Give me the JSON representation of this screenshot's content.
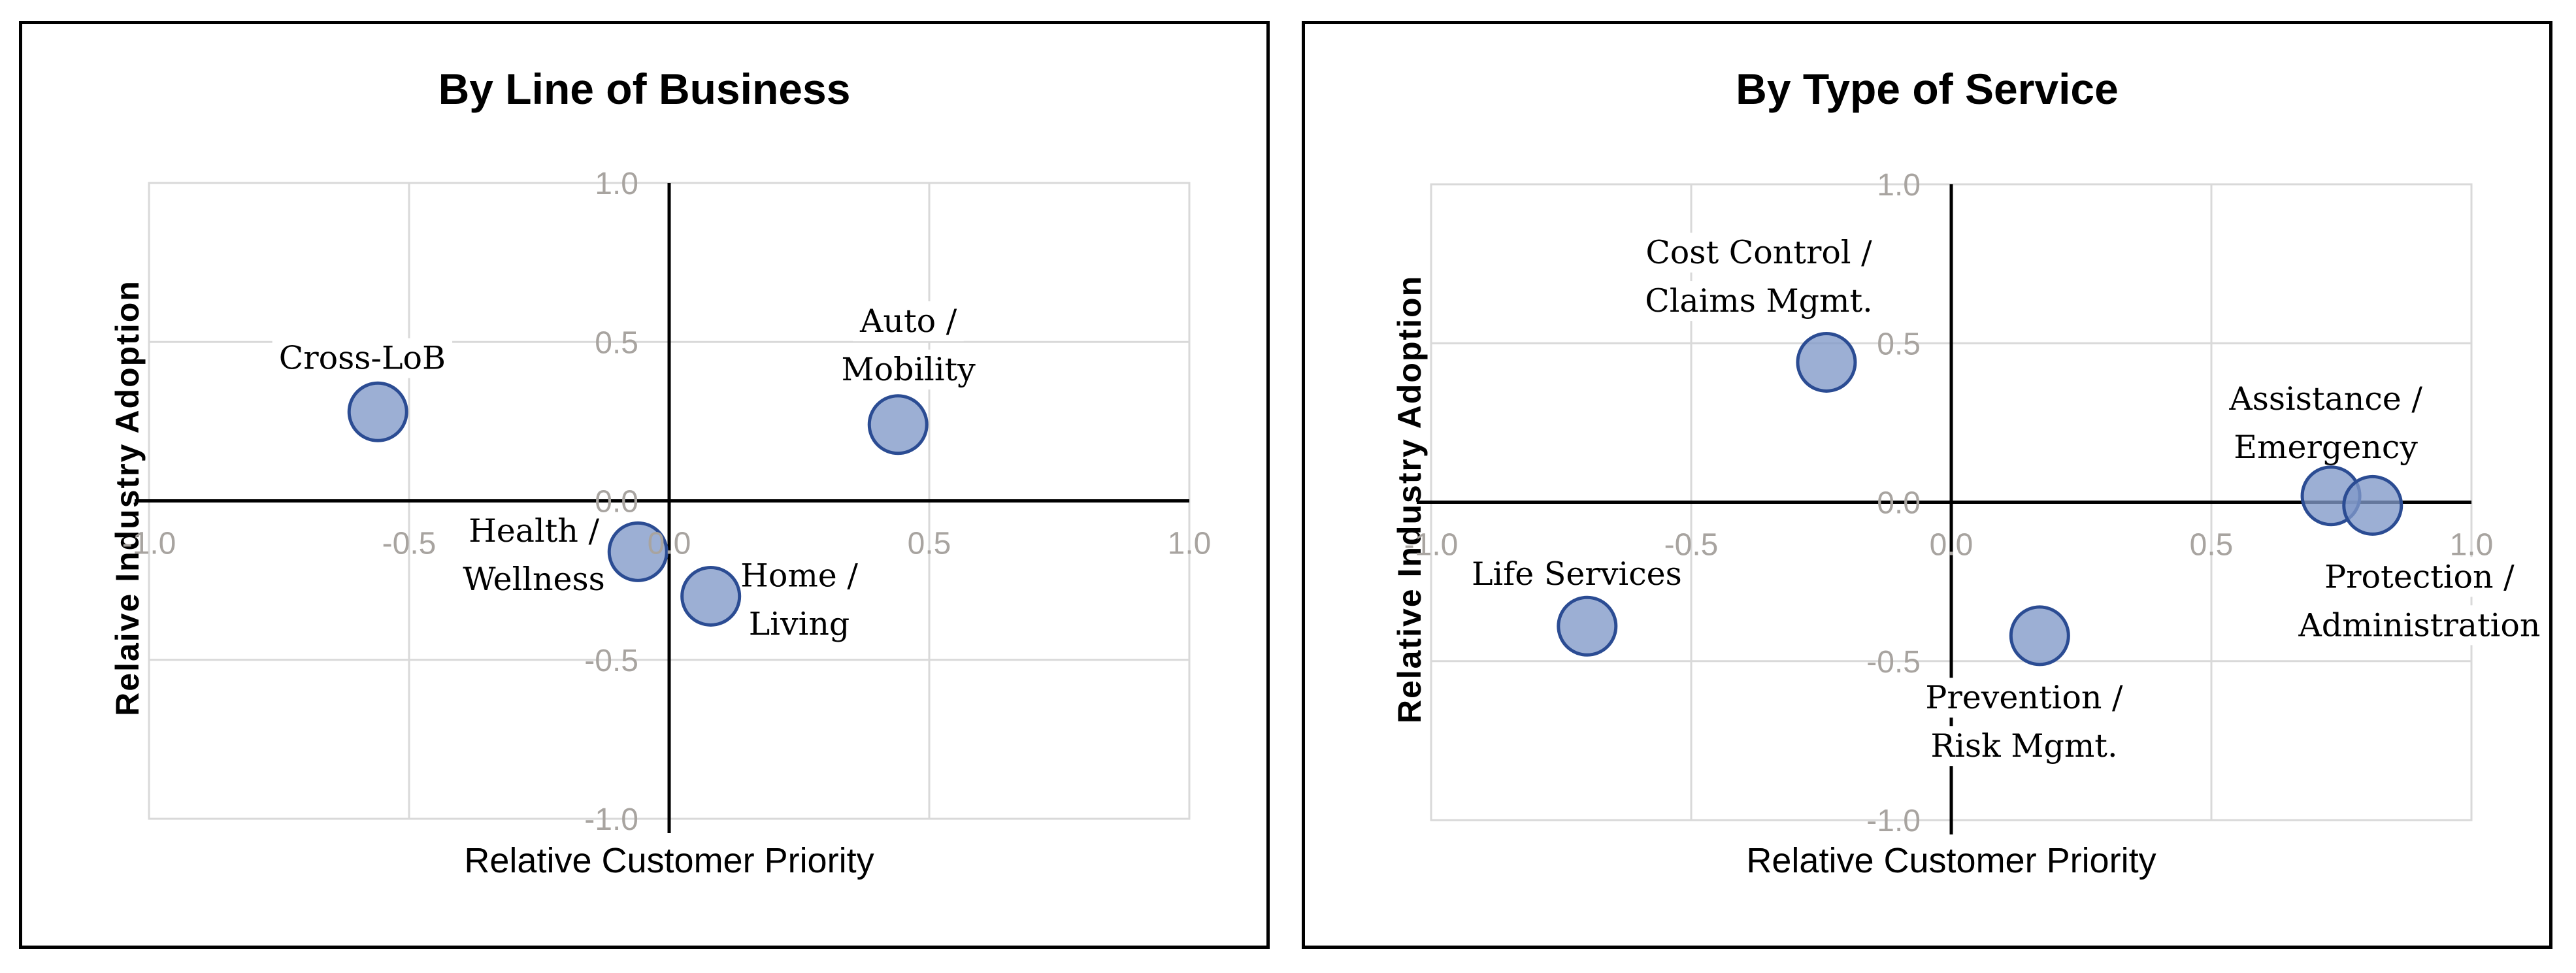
{
  "figure": {
    "background": "#ffffff",
    "panel_border_color": "#000000"
  },
  "colors": {
    "marker_fill": "#8098C8",
    "marker_fill_opacity": 0.78,
    "marker_stroke": "#2B4C93",
    "gridline": "#D9D9D9",
    "plot_border": "#D9D9D9",
    "axis_line": "#000000",
    "tick_label": "#A8A4A0",
    "data_label": "#000000",
    "label_background": "#FFFFFF"
  },
  "chart_data": [
    {
      "type": "scatter",
      "title": "By Line of Business",
      "xlabel": "Relative Customer Priority",
      "ylabel": "Relaive Industry Adoption",
      "xlim": [
        -1,
        1
      ],
      "ylim": [
        -1,
        1
      ],
      "grid": true,
      "legend": "none",
      "xticks": [
        "-1.0",
        "-0.5",
        "0.0",
        "0.5",
        "1.0"
      ],
      "yticks": [
        "1.0",
        "0.5",
        "0.0",
        "-0.5",
        "-1.0"
      ],
      "points": [
        {
          "name": "Cross-LoB",
          "x": -0.56,
          "y": 0.28,
          "label_lines": [
            "Cross-LoB"
          ],
          "label_x": -0.59,
          "label_y": 0.45
        },
        {
          "name": "Auto / Mobility",
          "x": 0.44,
          "y": 0.24,
          "label_lines": [
            "Auto /",
            "Mobility"
          ],
          "label_x": 0.46,
          "label_y": 0.49
        },
        {
          "name": "Health / Wellness",
          "x": -0.06,
          "y": -0.16,
          "label_lines": [
            "Health /",
            "Wellness"
          ],
          "label_x": -0.26,
          "label_y": -0.17
        },
        {
          "name": "Home / Living",
          "x": 0.08,
          "y": -0.3,
          "label_lines": [
            "Home /",
            "Living"
          ],
          "label_x": 0.25,
          "label_y": -0.31
        }
      ]
    },
    {
      "type": "scatter",
      "title": "By Type of Service",
      "xlabel": "Relative Customer Priority",
      "ylabel": "Relative Industry Adoption",
      "xlim": [
        -1,
        1
      ],
      "ylim": [
        -1,
        1
      ],
      "grid": true,
      "legend": "none",
      "xticks": [
        "-1.0",
        "-0.5",
        "0.0",
        "0.5",
        "1.0"
      ],
      "yticks": [
        "1.0",
        "0.5",
        "0.0",
        "-0.5",
        "-1.0"
      ],
      "points": [
        {
          "name": "Cost Control / Claims Mgmt.",
          "x": -0.24,
          "y": 0.44,
          "label_lines": [
            "Cost Control /",
            "Claims Mgmt."
          ],
          "label_x": -0.37,
          "label_y": 0.71
        },
        {
          "name": "Assistance / Emergency",
          "x": 0.73,
          "y": 0.02,
          "label_lines": [
            "Assistance /",
            "Emergency"
          ],
          "label_x": 0.72,
          "label_y": 0.25
        },
        {
          "name": "Protection / Administration",
          "x": 0.81,
          "y": -0.01,
          "label_lines": [
            "Protection /",
            "Administration"
          ],
          "label_x": 0.9,
          "label_y": -0.31
        },
        {
          "name": "Life Services",
          "x": -0.7,
          "y": -0.39,
          "label_lines": [
            "Life Services"
          ],
          "label_x": -0.72,
          "label_y": -0.225
        },
        {
          "name": "Prevention / Risk Mgmt.",
          "x": 0.17,
          "y": -0.42,
          "label_lines": [
            "Prevention /",
            "Risk Mgmt."
          ],
          "label_x": 0.14,
          "label_y": -0.69
        }
      ]
    }
  ]
}
